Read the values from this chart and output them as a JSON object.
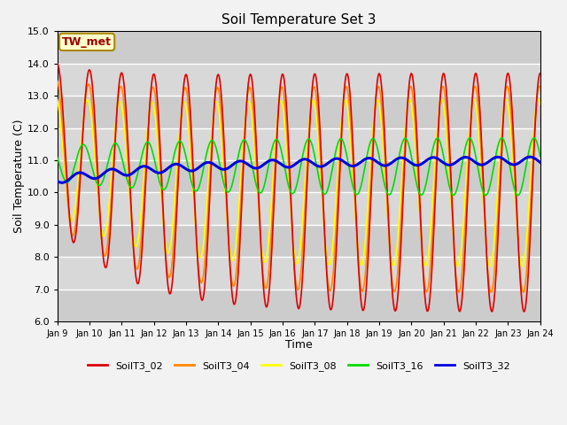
{
  "title": "Soil Temperature Set 3",
  "xlabel": "Time",
  "ylabel": "Soil Temperature (C)",
  "ylim": [
    6.0,
    15.0
  ],
  "yticks": [
    6.0,
    7.0,
    8.0,
    9.0,
    10.0,
    11.0,
    12.0,
    13.0,
    14.0,
    15.0
  ],
  "x_tick_labels": [
    "Jan 9",
    "Jan 10",
    "Jan 11",
    "Jan 12",
    "Jan 13",
    "Jan 14",
    "Jan 15",
    "Jan 16",
    "Jan 17",
    "Jan 18",
    "Jan 19",
    "Jan 20",
    "Jan 21",
    "Jan 22",
    "Jan 23",
    "Jan 24"
  ],
  "annotation_text": "TW_met",
  "annotation_color": "#990000",
  "annotation_bg": "#ffffcc",
  "annotation_border": "#aa8800",
  "colors": {
    "SoilT3_02": "#dd0000",
    "SoilT3_04": "#ff8800",
    "SoilT3_08": "#ffff00",
    "SoilT3_16": "#00dd00",
    "SoilT3_32": "#0000dd"
  },
  "bg_bands": [
    "#e0e0e0",
    "#ebebeb"
  ],
  "grid_color": "#ffffff",
  "fig_bg": "#f2f2f2",
  "linewidth": 1.2
}
